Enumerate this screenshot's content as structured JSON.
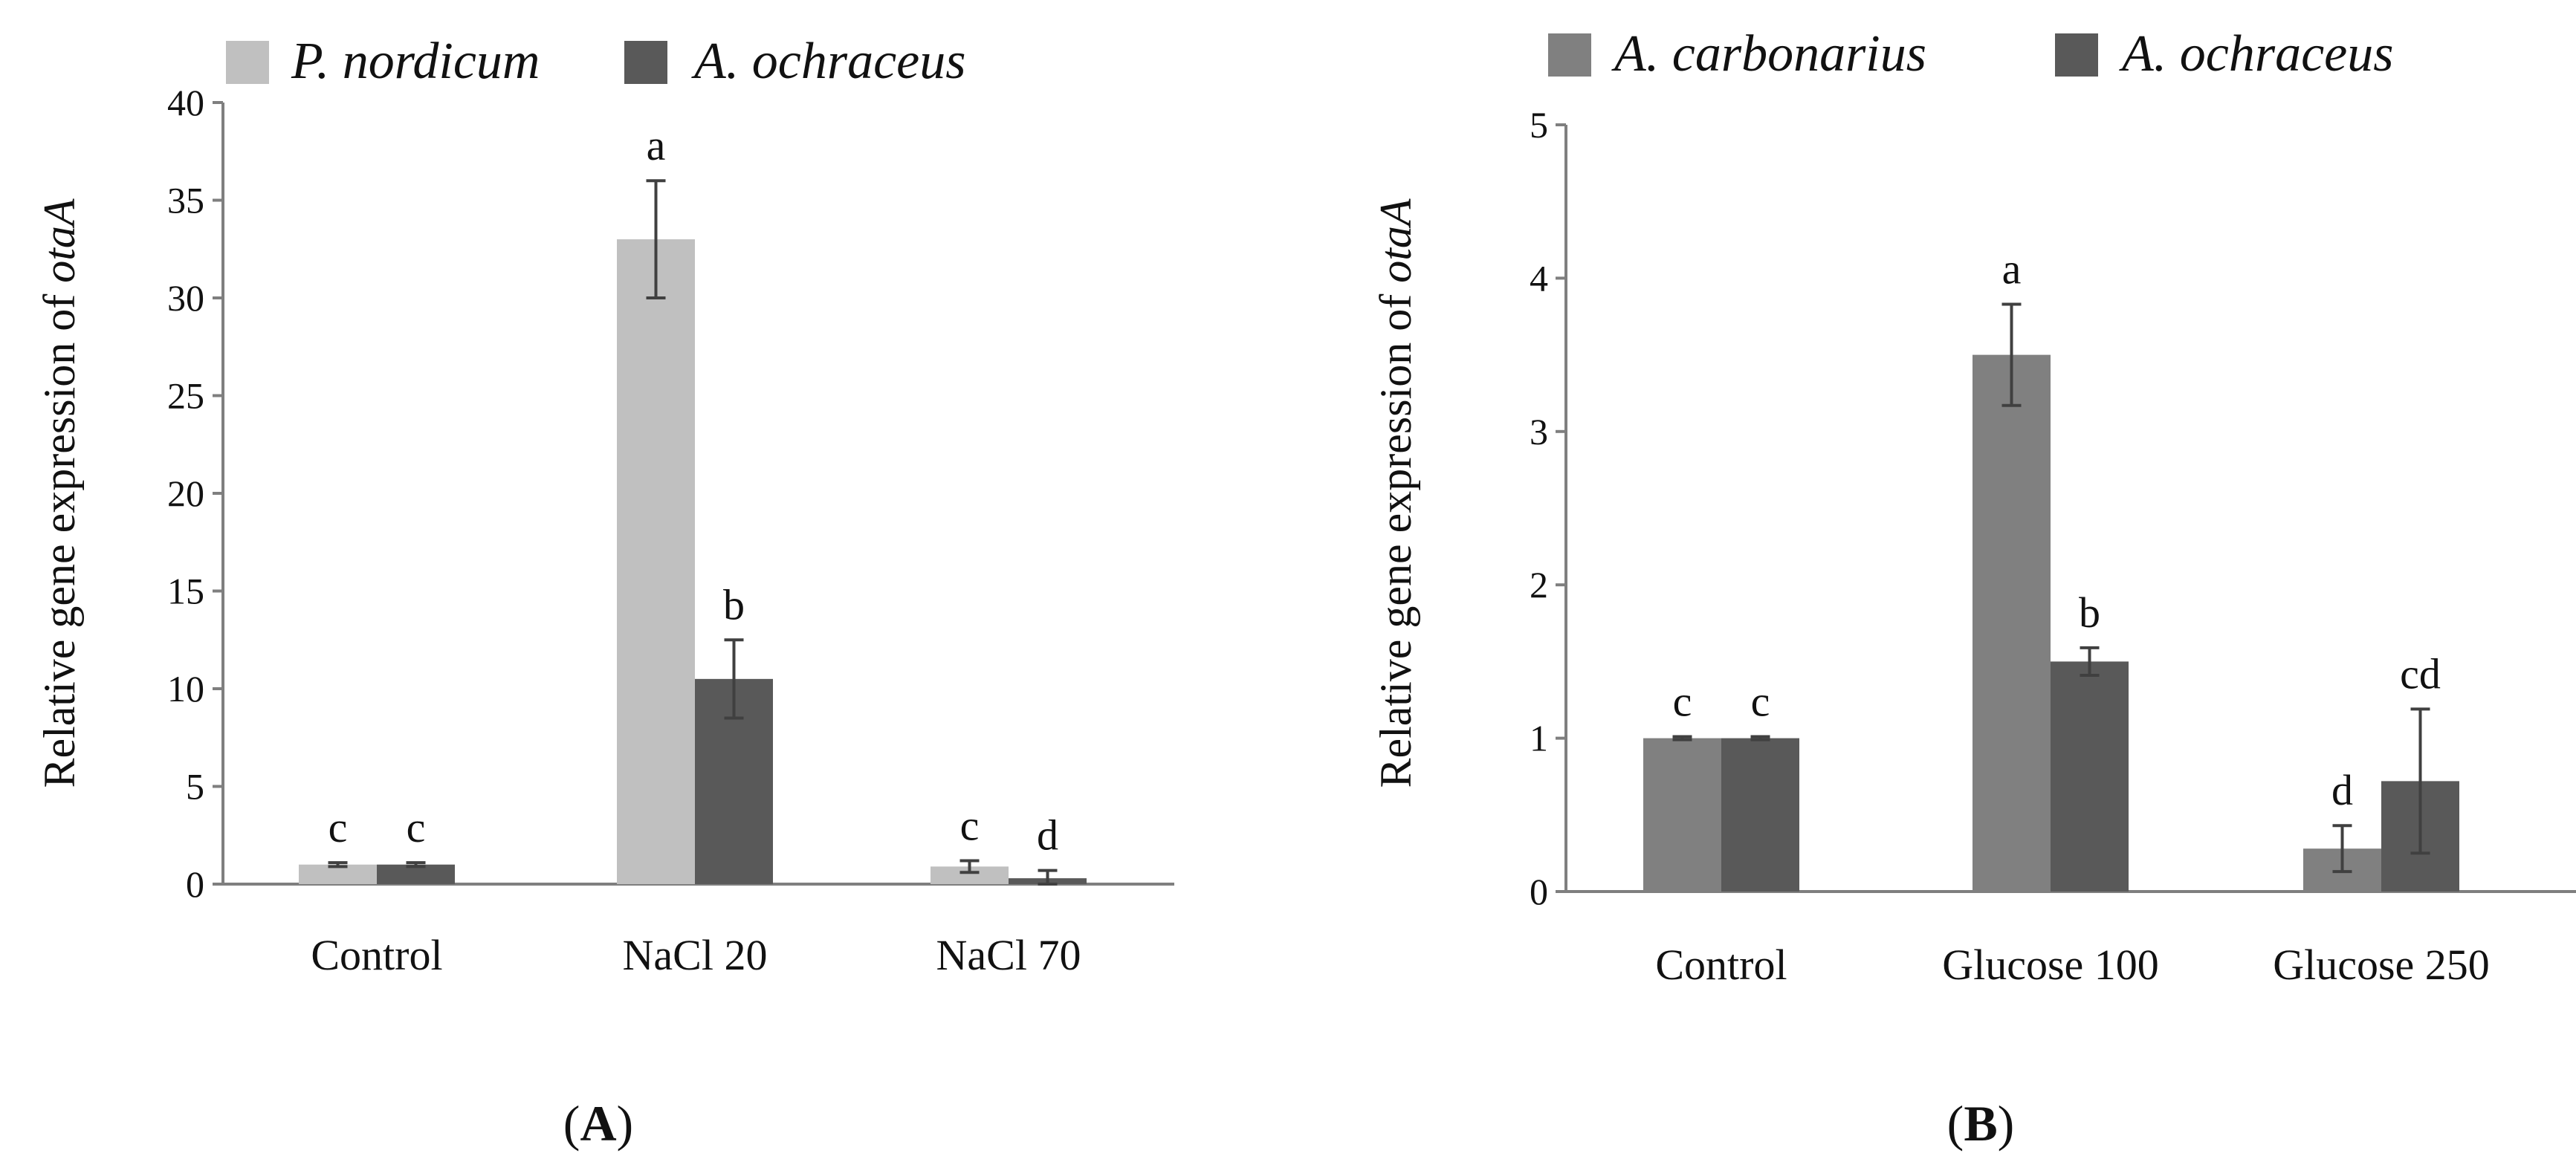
{
  "chart_data": [
    {
      "type": "bar",
      "panel_label": "A",
      "title": "",
      "xlabel": "",
      "ylabel_prefix": "Relative gene expression of ",
      "ylabel_italic": "otaA",
      "categories": [
        "Control",
        "NaCl 20",
        "NaCl 70"
      ],
      "ylim": [
        0,
        40
      ],
      "yticks": [
        0,
        5,
        10,
        15,
        20,
        25,
        30,
        35,
        40
      ],
      "grid": false,
      "legend_position": "top",
      "series": [
        {
          "name": "P. nordicum",
          "color": "#c0c0c0",
          "values": [
            1.0,
            33.0,
            0.9
          ],
          "errors": [
            0.1,
            3.0,
            0.3
          ],
          "letters": [
            "c",
            "a",
            "c"
          ]
        },
        {
          "name": "A. ochraceus",
          "color": "#595959",
          "values": [
            1.0,
            10.5,
            0.3
          ],
          "errors": [
            0.1,
            2.0,
            0.4
          ],
          "letters": [
            "c",
            "b",
            "d"
          ]
        }
      ]
    },
    {
      "type": "bar",
      "panel_label": "B",
      "title": "",
      "xlabel": "",
      "ylabel_prefix": "Relative gene expression of ",
      "ylabel_italic": "otaA",
      "categories": [
        "Control",
        "Glucose 100",
        "Glucose 250"
      ],
      "ylim": [
        0,
        5
      ],
      "yticks": [
        0,
        1,
        2,
        3,
        4,
        5
      ],
      "grid": false,
      "legend_position": "top",
      "series": [
        {
          "name": "A. carbonarius",
          "color": "#808080",
          "values": [
            1.0,
            3.5,
            0.28
          ],
          "errors": [
            0.01,
            0.33,
            0.15
          ],
          "letters": [
            "c",
            "a",
            "d"
          ]
        },
        {
          "name": "A. ochraceus",
          "color": "#595959",
          "values": [
            1.0,
            1.5,
            0.72
          ],
          "errors": [
            0.01,
            0.09,
            0.47
          ],
          "letters": [
            "c",
            "b",
            "cd"
          ]
        }
      ]
    }
  ]
}
